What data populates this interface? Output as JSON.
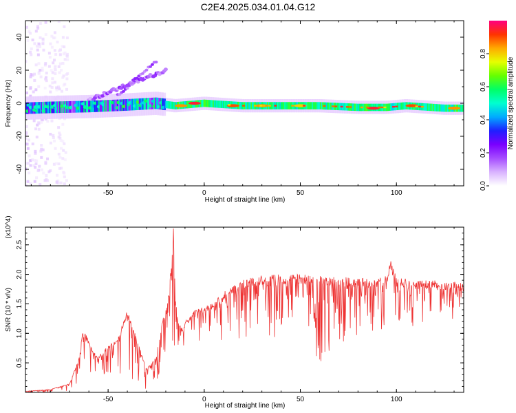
{
  "title": "C2E4.2025.034.01.04.G12",
  "chart_data": [
    {
      "type": "heatmap",
      "xlabel": "Height of straight line (km)",
      "ylabel": "Frequency (Hz)",
      "xlim": [
        -93,
        135
      ],
      "ylim": [
        -50,
        50
      ],
      "xticks": [
        -50,
        0,
        50,
        100
      ],
      "yticks": [
        40,
        20,
        0,
        -20,
        -40
      ],
      "colorbar": {
        "label": "Normalized spectral amplitude",
        "range": [
          0,
          1
        ],
        "ticks": [
          0.0,
          0.2,
          0.4,
          0.6,
          0.8
        ],
        "colormap": [
          "#ffffff",
          "#d9b3ff",
          "#a64dff",
          "#7a00ff",
          "#1f1fff",
          "#00aaff",
          "#00ffd0",
          "#00ff66",
          "#66ff00",
          "#e6ff00",
          "#ffaa00",
          "#ff3300",
          "#ff0080"
        ]
      },
      "ridge": [
        {
          "x": -93,
          "y": -3
        },
        {
          "x": -80,
          "y": -2.5
        },
        {
          "x": -60,
          "y": -2
        },
        {
          "x": -40,
          "y": -1
        },
        {
          "x": -25,
          "y": 0
        },
        {
          "x": -15,
          "y": -1.5
        },
        {
          "x": 0,
          "y": 0
        },
        {
          "x": 20,
          "y": -1.5
        },
        {
          "x": 60,
          "y": -1.5
        },
        {
          "x": 80,
          "y": -2.5
        },
        {
          "x": 95,
          "y": -2.5
        },
        {
          "x": 105,
          "y": -1.5
        },
        {
          "x": 125,
          "y": -3
        },
        {
          "x": 135,
          "y": -3
        }
      ],
      "hotspots": [
        {
          "x": -5,
          "y": 0,
          "v": 0.95
        },
        {
          "x": 15,
          "y": -1.5,
          "v": 0.9
        },
        {
          "x": 30,
          "y": -1.5,
          "v": 0.85
        },
        {
          "x": 50,
          "y": -1.5,
          "v": 0.8
        },
        {
          "x": 88,
          "y": -3,
          "v": 0.95
        },
        {
          "x": 108,
          "y": -1.5,
          "v": 0.9
        },
        {
          "x": 130,
          "y": -3,
          "v": 0.85
        },
        {
          "x": -12,
          "y": -1.5,
          "v": 0.85
        }
      ],
      "grid": false
    },
    {
      "type": "line",
      "xlabel": "Height of straight line (km)",
      "ylabel": "SNR (10 * v/v)",
      "y_multiplier": "(x10^4)",
      "xlim": [
        -93,
        135
      ],
      "ylim": [
        0,
        2.8
      ],
      "xticks": [
        -50,
        0,
        50,
        100
      ],
      "yticks": [
        0.5,
        1.0,
        1.5,
        2.0,
        2.5
      ],
      "series": [
        {
          "color": "#ee3333",
          "envelope_x": [
            -93,
            -80,
            -70,
            -65,
            -63,
            -58,
            -55,
            -50,
            -45,
            -40,
            -38,
            -35,
            -30,
            -25,
            -22,
            -20,
            -18,
            -16,
            -15,
            -14,
            -12,
            -10,
            -5,
            0,
            5,
            10,
            15,
            20,
            25,
            30,
            40,
            50,
            60,
            70,
            80,
            90,
            95,
            97,
            100,
            110,
            120,
            130,
            135
          ],
          "envelope_y": [
            0.02,
            0.05,
            0.15,
            0.6,
            1.1,
            0.7,
            0.6,
            0.8,
            0.9,
            1.4,
            1.2,
            0.9,
            0.4,
            0.6,
            1.2,
            1.4,
            1.8,
            2.8,
            1.7,
            1.3,
            1.1,
            1.2,
            1.4,
            1.45,
            1.55,
            1.7,
            1.8,
            1.9,
            1.95,
            1.98,
            2.0,
            2.0,
            1.98,
            1.95,
            1.95,
            1.92,
            2.0,
            2.25,
            1.95,
            1.9,
            1.9,
            1.88,
            1.85
          ],
          "dips_min_y": [
            0.0,
            0.0,
            0.02,
            0.2,
            0.4,
            0.3,
            0.2,
            0.3,
            0.3,
            0.3,
            0.2,
            0.1,
            0.05,
            0.15,
            0.3,
            0.5,
            0.6,
            0.8,
            0.6,
            0.6,
            0.65,
            0.7,
            0.8,
            0.9,
            0.9,
            0.8,
            0.7,
            0.75,
            0.8,
            0.9,
            0.9,
            0.55,
            0.5,
            0.7,
            0.9,
            1.0,
            1.1,
            1.2,
            1.1,
            1.1,
            1.3,
            1.2,
            1.4
          ]
        }
      ],
      "grid": false
    }
  ]
}
